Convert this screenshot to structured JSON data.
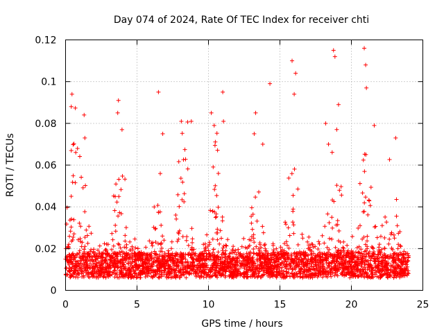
{
  "chart_data": {
    "type": "scatter",
    "title": "Day 074 of 2024, Rate Of TEC Index for receiver chti",
    "xlabel": "GPS time / hours",
    "ylabel": "ROTI / TECUs",
    "xlim": [
      0,
      25
    ],
    "ylim": [
      0,
      0.12
    ],
    "xticks": [
      0,
      5,
      10,
      15,
      20,
      25
    ],
    "xtick_labels": [
      "0",
      "5",
      "10",
      "15",
      "20",
      "25"
    ],
    "yticks": [
      0,
      0.02,
      0.04,
      0.06,
      0.08,
      0.1,
      0.12
    ],
    "ytick_labels": [
      "0",
      "0.02",
      "0.04",
      "0.06",
      "0.08",
      "0.1",
      "0.12"
    ],
    "grid": true,
    "marker": "+",
    "marker_color": "#ff0000",
    "data_extent_x": [
      0,
      24
    ],
    "baseline_typical": 0.012,
    "peaks": [
      {
        "x": 0.45,
        "y": 0.094
      },
      {
        "x": 0.4,
        "y": 0.088
      },
      {
        "x": 0.4,
        "y": 0.067
      },
      {
        "x": 1.3,
        "y": 0.084
      },
      {
        "x": 1.35,
        "y": 0.073
      },
      {
        "x": 3.7,
        "y": 0.091
      },
      {
        "x": 3.65,
        "y": 0.085
      },
      {
        "x": 3.95,
        "y": 0.077
      },
      {
        "x": 6.5,
        "y": 0.095
      },
      {
        "x": 6.8,
        "y": 0.075
      },
      {
        "x": 8.1,
        "y": 0.081
      },
      {
        "x": 8.8,
        "y": 0.081
      },
      {
        "x": 10.2,
        "y": 0.085
      },
      {
        "x": 10.4,
        "y": 0.079
      },
      {
        "x": 11.0,
        "y": 0.095
      },
      {
        "x": 11.05,
        "y": 0.081
      },
      {
        "x": 13.3,
        "y": 0.085
      },
      {
        "x": 13.2,
        "y": 0.075
      },
      {
        "x": 14.3,
        "y": 0.099
      },
      {
        "x": 13.8,
        "y": 0.07
      },
      {
        "x": 15.85,
        "y": 0.11
      },
      {
        "x": 16.1,
        "y": 0.104
      },
      {
        "x": 16.0,
        "y": 0.094
      },
      {
        "x": 18.2,
        "y": 0.08
      },
      {
        "x": 18.4,
        "y": 0.07
      },
      {
        "x": 18.75,
        "y": 0.115
      },
      {
        "x": 18.85,
        "y": 0.112
      },
      {
        "x": 19.1,
        "y": 0.089
      },
      {
        "x": 20.9,
        "y": 0.116
      },
      {
        "x": 21.0,
        "y": 0.108
      },
      {
        "x": 21.05,
        "y": 0.097
      },
      {
        "x": 21.6,
        "y": 0.079
      },
      {
        "x": 23.1,
        "y": 0.073
      }
    ]
  }
}
